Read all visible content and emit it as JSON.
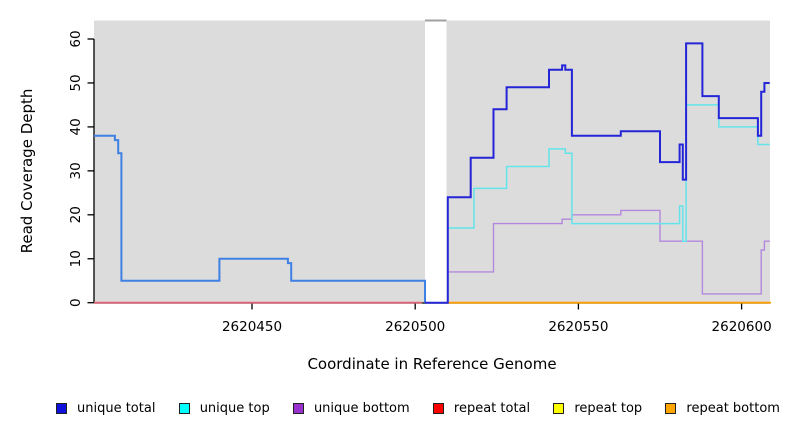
{
  "chart_data": {
    "type": "line",
    "subtype": "step",
    "title": "",
    "xlabel": "Coordinate in Reference Genome",
    "ylabel": "Read Coverage Depth",
    "xlim": [
      2620401,
      2620609
    ],
    "ylim": [
      0,
      64
    ],
    "x_ticks": [
      2620450,
      2620500,
      2620550,
      2620600
    ],
    "y_ticks": [
      0,
      10,
      20,
      30,
      40,
      50,
      60
    ],
    "grid": false,
    "plot_bg": "#dcdcdc",
    "gap_region": {
      "from": 2620503,
      "to": 2620509.6,
      "fill": "#ffffff",
      "cap_color": "#a0a0a0",
      "note": "white vertical band, no data"
    },
    "legend": {
      "position": "bottom",
      "items": [
        {
          "label": "unique total",
          "color": "#1111dd"
        },
        {
          "label": "unique top",
          "color": "#00ffff"
        },
        {
          "label": "unique bottom",
          "color": "#9932cc"
        },
        {
          "label": "repeat total",
          "color": "#ff0000"
        },
        {
          "label": "repeat top",
          "color": "#ffff00"
        },
        {
          "label": "repeat bottom",
          "color": "#ffa500"
        }
      ]
    },
    "series": [
      {
        "name": "repeat top (left of gap)",
        "color": "#f2e24a",
        "width": 1.6,
        "steps": [
          [
            2620401,
            0
          ]
        ],
        "end": 2620502
      },
      {
        "name": "repeat total (left of gap)",
        "color": "#dd6379",
        "width": 1.8,
        "steps": [
          [
            2620401,
            0
          ]
        ],
        "end": 2620502
      },
      {
        "name": "repeat bottom (right of gap)",
        "color": "#ff9e00",
        "width": 1.8,
        "steps": [
          [
            2620510,
            0
          ]
        ],
        "end": 2620609
      },
      {
        "name": "unique bottom",
        "color": "#b388dd",
        "width": 1.4,
        "start_at_zero": true,
        "steps": [
          [
            2620510,
            7
          ],
          [
            2620524,
            18
          ],
          [
            2620545,
            19
          ],
          [
            2620548,
            20
          ],
          [
            2620563,
            21
          ],
          [
            2620575,
            14
          ],
          [
            2620588,
            2
          ],
          [
            2620606,
            12
          ],
          [
            2620607,
            14
          ]
        ],
        "end": 2620608.6
      },
      {
        "name": "unique top",
        "color": "#63e4ea",
        "width": 1.5,
        "start_at_zero": true,
        "steps": [
          [
            2620510,
            17
          ],
          [
            2620518,
            26
          ],
          [
            2620528,
            31
          ],
          [
            2620541,
            35
          ],
          [
            2620546,
            34
          ],
          [
            2620548,
            18
          ],
          [
            2620581,
            22
          ],
          [
            2620582,
            14
          ],
          [
            2620583,
            45
          ],
          [
            2620593,
            40
          ],
          [
            2620605,
            36
          ]
        ],
        "end": 2620608.6
      },
      {
        "name": "unique total (left of gap)",
        "color": "#3f80e4",
        "width": 2,
        "end_at_zero": true,
        "steps": [
          [
            2620401,
            38
          ],
          [
            2620408,
            37
          ],
          [
            2620409,
            34
          ],
          [
            2620410,
            5
          ],
          [
            2620440,
            10
          ],
          [
            2620461,
            9
          ],
          [
            2620462,
            5
          ]
        ],
        "end": 2620503
      },
      {
        "name": "unique total (right of gap)",
        "color": "#2525d8",
        "width": 2,
        "steps": [
          [
            2620503,
            0
          ],
          [
            2620510,
            24
          ],
          [
            2620517,
            33
          ],
          [
            2620524,
            44
          ],
          [
            2620528,
            49
          ],
          [
            2620541,
            53
          ],
          [
            2620545,
            54
          ],
          [
            2620546,
            53
          ],
          [
            2620548,
            38
          ],
          [
            2620563,
            39
          ],
          [
            2620575,
            32
          ],
          [
            2620581,
            36
          ],
          [
            2620582,
            28
          ],
          [
            2620583,
            59
          ],
          [
            2620588,
            47
          ],
          [
            2620593,
            42
          ],
          [
            2620605,
            38
          ],
          [
            2620606,
            48
          ],
          [
            2620607,
            50
          ]
        ],
        "end": 2620608.6
      }
    ]
  }
}
